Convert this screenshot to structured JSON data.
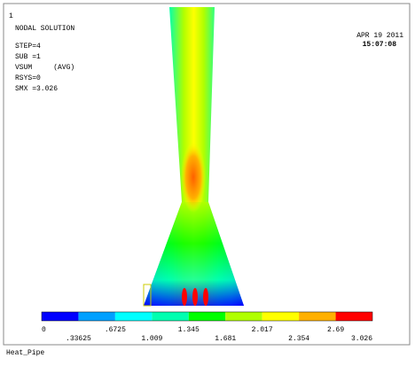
{
  "header": {
    "id": "1",
    "title": "NODAL SOLUTION",
    "lines": [
      "STEP=4",
      "SUB =1",
      "VSUM     (AVG)",
      "RSYS=0",
      "SMX =3.026"
    ]
  },
  "date": "APR 19 2011",
  "time": "15:07:08",
  "legend": {
    "colors": [
      "#0000ff",
      "#00a0ff",
      "#00ffff",
      "#00ffb0",
      "#00ff00",
      "#b0ff00",
      "#ffff00",
      "#ffb000",
      "#ff0000"
    ],
    "labels": [
      "0",
      ".33625",
      ".6725",
      "1.009",
      "1.345",
      "1.681",
      "2.017",
      "2.354",
      "2.69",
      "3.026"
    ]
  },
  "footer": "Heat_Pipe"
}
